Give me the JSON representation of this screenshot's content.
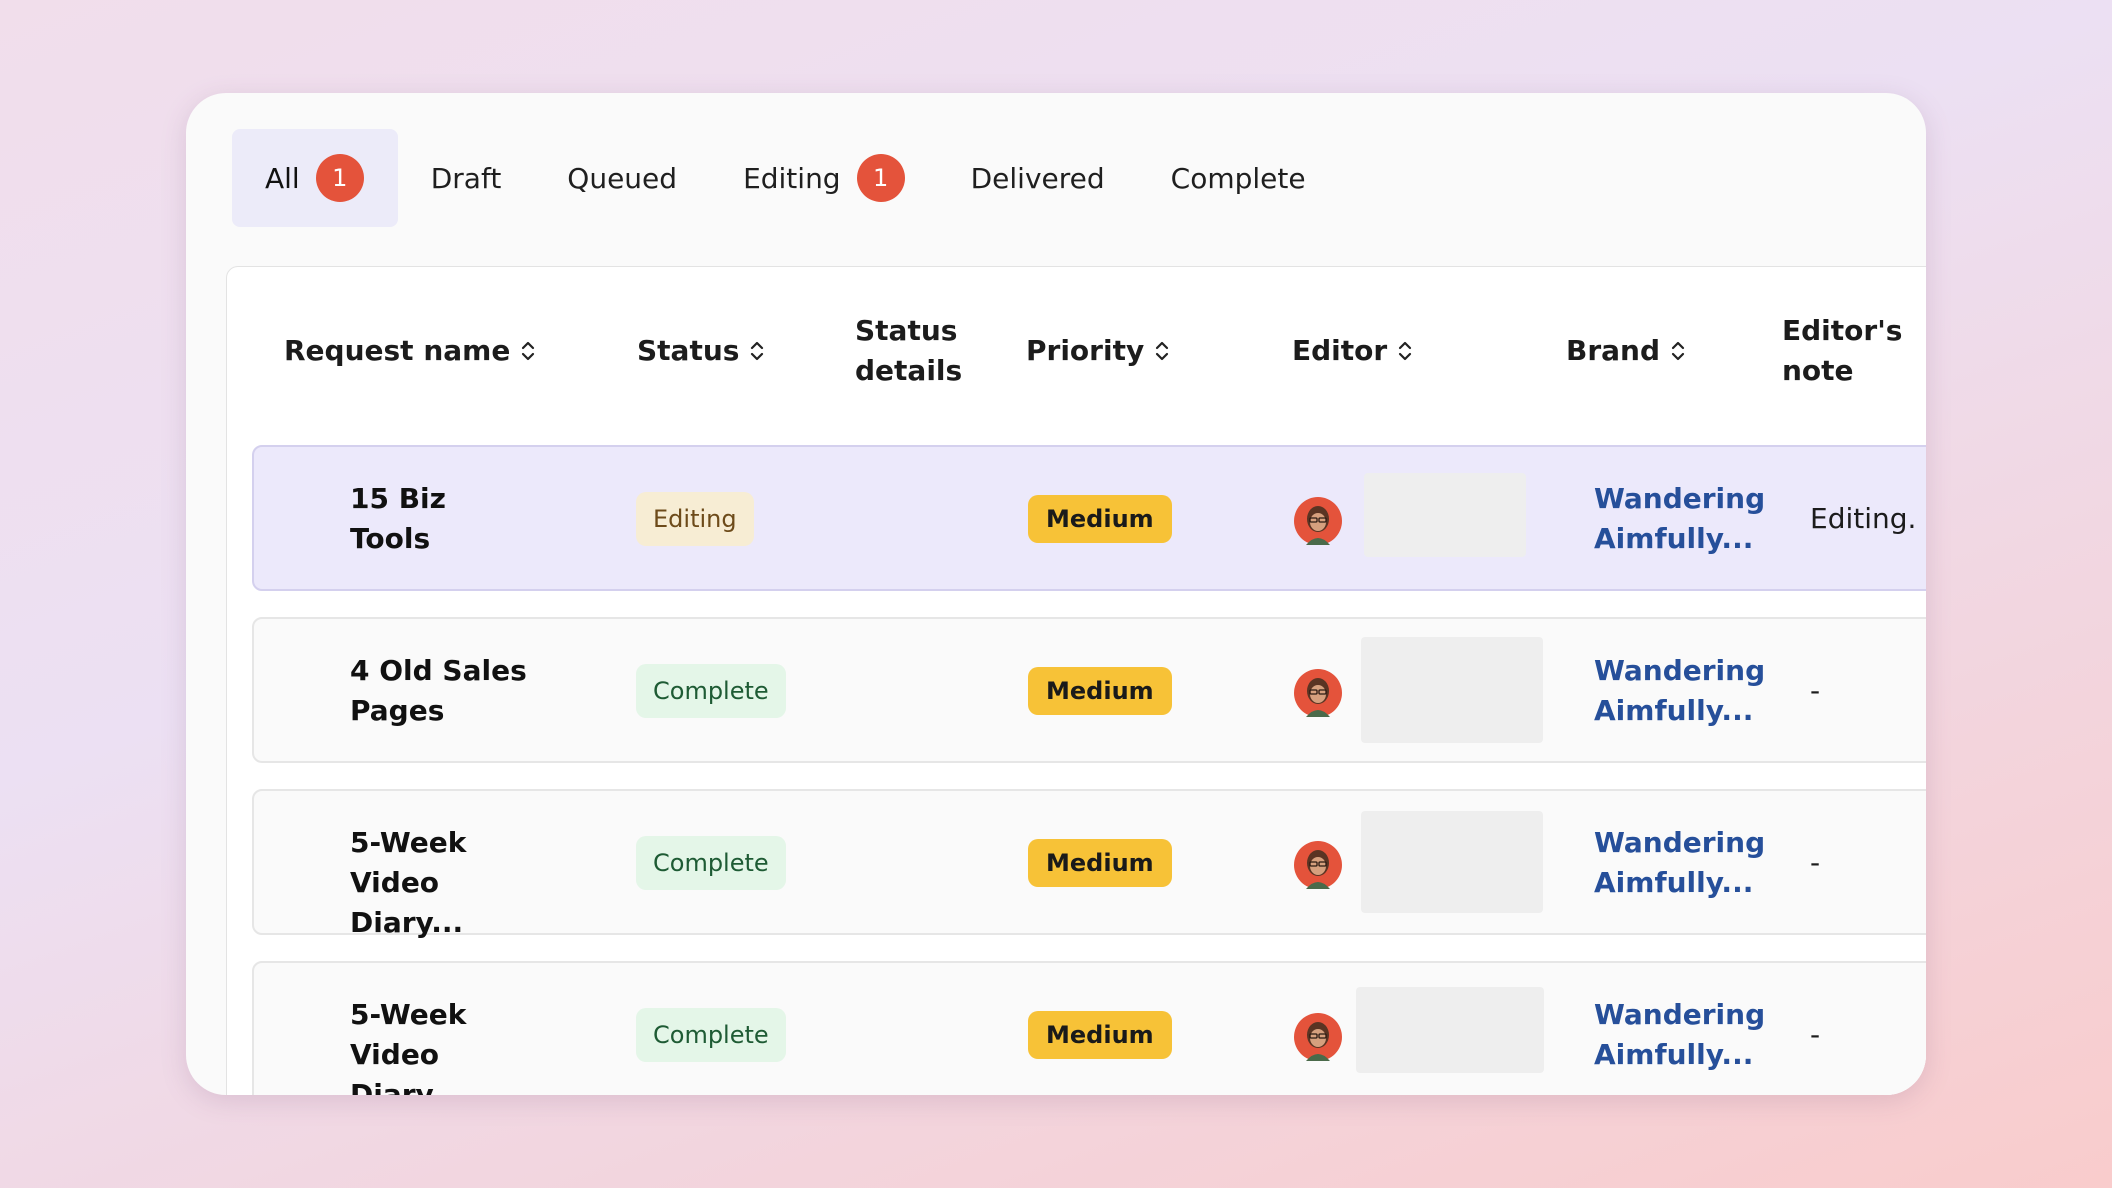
{
  "tabs": [
    {
      "label": "All",
      "badge": "1"
    },
    {
      "label": "Draft"
    },
    {
      "label": "Queued"
    },
    {
      "label": "Editing",
      "badge": "1"
    },
    {
      "label": "Delivered"
    },
    {
      "label": "Complete"
    }
  ],
  "columns": {
    "request_name": "Request name",
    "status": "Status",
    "status_details_1": "Status",
    "status_details_2": "details",
    "priority": "Priority",
    "editor": "Editor",
    "brand": "Brand",
    "editors_note_1": "Editor's",
    "editors_note_2": "note"
  },
  "rows": [
    {
      "name_1": "15 Biz",
      "name_2": "Tools",
      "status": "Editing",
      "priority": "Medium",
      "brand_1": "Wandering",
      "brand_2": "Aimfully...",
      "note": "Editing."
    },
    {
      "name_1": "4 Old Sales",
      "name_2": "Pages",
      "status": "Complete",
      "priority": "Medium",
      "brand_1": "Wandering",
      "brand_2": "Aimfully...",
      "note": "-"
    },
    {
      "name_1": "5-Week",
      "name_2": "Video Diary...",
      "status": "Complete",
      "priority": "Medium",
      "brand_1": "Wandering",
      "brand_2": "Aimfully...",
      "note": "-"
    },
    {
      "name_1": "5-Week",
      "name_2": "Video Diary...",
      "status": "Complete",
      "priority": "Medium",
      "brand_1": "Wandering",
      "brand_2": "Aimfully...",
      "note": "-"
    }
  ],
  "colors": {
    "accent_badge": "#e4533b",
    "selected_row": "#ece9fb",
    "priority_medium": "#f7c237",
    "brand_link": "#264f9a"
  }
}
